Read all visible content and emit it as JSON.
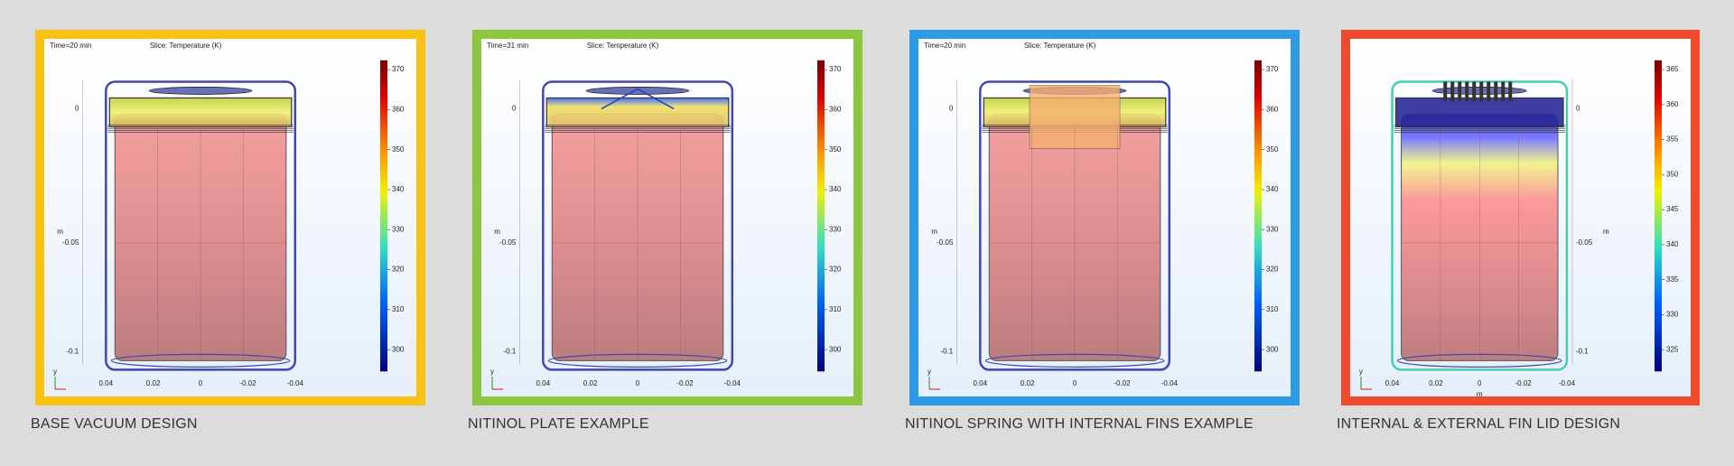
{
  "panels": [
    {
      "caption": "BASE VACUUM DESIGN",
      "border_color": "#f9c112",
      "time": "Time=20 min",
      "slice": "Slice: Temperature (K)",
      "colorbar_ticks": [
        370,
        360,
        350,
        340,
        330,
        320,
        310,
        300
      ],
      "z_ticks": [
        "0",
        "-0.05",
        "-0.1"
      ],
      "z_unit": "m",
      "x_ticks": [
        "0.04",
        "0.02",
        "0",
        "-0.02",
        "-0.04"
      ],
      "axis_y": "y"
    },
    {
      "caption": "NITINOL PLATE EXAMPLE",
      "border_color": "#8cc63f",
      "time": "Time=31 min",
      "slice": "Slice: Temperature (K)",
      "colorbar_ticks": [
        370,
        360,
        350,
        340,
        330,
        320,
        310,
        300
      ],
      "z_ticks": [
        "0",
        "-0.05",
        "-0.1"
      ],
      "z_unit": "m",
      "x_ticks": [
        "0.04",
        "0.02",
        "0",
        "-0.02",
        "-0.04"
      ],
      "axis_y": "y"
    },
    {
      "caption": "NITINOL SPRING WITH INTERNAL FINS EXAMPLE",
      "border_color": "#2e9be6",
      "time": "Time=20 min",
      "slice": "Slice: Temperature (K)",
      "colorbar_ticks": [
        370,
        360,
        350,
        340,
        330,
        320,
        310,
        300
      ],
      "z_ticks": [
        "0",
        "-0.05",
        "-0.1"
      ],
      "z_unit": "m",
      "x_ticks": [
        "0.04",
        "0.02",
        "0",
        "-0.02",
        "-0.04"
      ],
      "axis_y": "y"
    },
    {
      "caption": "INTERNAL & EXTERNAL FIN LID DESIGN",
      "border_color": "#ef4a2b",
      "colorbar_ticks": [
        365,
        360,
        355,
        350,
        345,
        340,
        335,
        330,
        325
      ],
      "z_ticks": [
        "0",
        "-0.05",
        "-0.1"
      ],
      "z_unit": "m",
      "x_ticks": [
        "0.04",
        "0.02",
        "0",
        "-0.02",
        "-0.04"
      ],
      "x_unit": "m",
      "axis_y": "y"
    }
  ]
}
